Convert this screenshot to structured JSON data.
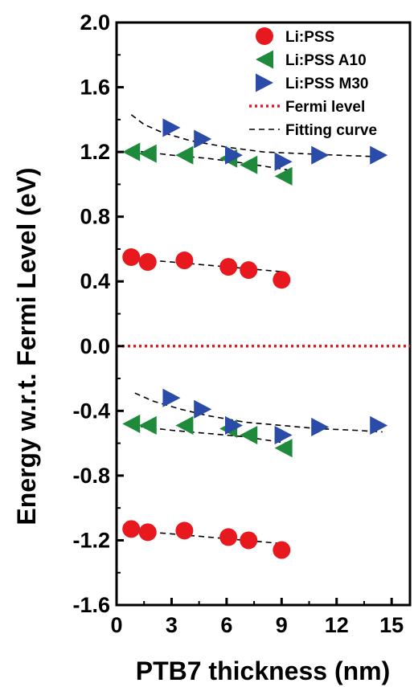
{
  "chart_data": {
    "type": "scatter",
    "title": "",
    "xlabel": "PTB7 thickness (nm)",
    "ylabel": "Energy w.r.t. Fermi Level (eV)",
    "xlim": [
      0,
      16
    ],
    "ylim": [
      -1.6,
      2.0
    ],
    "x_ticks": [
      0,
      3,
      6,
      9,
      12,
      15
    ],
    "x_tick_labels": [
      "0",
      "3",
      "6",
      "9",
      "12",
      "15"
    ],
    "y_ticks": [
      -1.6,
      -1.2,
      -0.8,
      -0.4,
      0.0,
      0.4,
      0.8,
      1.2,
      1.6,
      2.0
    ],
    "y_tick_labels": [
      "-1.6",
      "-1.2",
      "-0.8",
      "-0.4",
      "0.0",
      "0.4",
      "0.8",
      "1.2",
      "1.6",
      "2.0"
    ],
    "grid": false,
    "legend_position": "top-right",
    "series": [
      {
        "name": "Li:PSS",
        "marker": "circle",
        "color": "#e8191e",
        "points": [
          {
            "x": 0.8,
            "y": 0.55
          },
          {
            "x": 1.7,
            "y": 0.52
          },
          {
            "x": 3.7,
            "y": 0.53
          },
          {
            "x": 6.1,
            "y": 0.49
          },
          {
            "x": 7.2,
            "y": 0.47
          },
          {
            "x": 9.0,
            "y": 0.41
          },
          {
            "x": 0.8,
            "y": -1.13
          },
          {
            "x": 1.7,
            "y": -1.15
          },
          {
            "x": 3.7,
            "y": -1.14
          },
          {
            "x": 6.1,
            "y": -1.18
          },
          {
            "x": 7.2,
            "y": -1.2
          },
          {
            "x": 9.0,
            "y": -1.26
          }
        ]
      },
      {
        "name": "Li:PSS A10",
        "marker": "triangle-left",
        "color": "#1f8a3c",
        "points": [
          {
            "x": 0.8,
            "y": 1.2
          },
          {
            "x": 1.7,
            "y": 1.19
          },
          {
            "x": 3.7,
            "y": 1.18
          },
          {
            "x": 6.1,
            "y": 1.16
          },
          {
            "x": 7.2,
            "y": 1.12
          },
          {
            "x": 9.1,
            "y": 1.05
          },
          {
            "x": 0.8,
            "y": -0.48
          },
          {
            "x": 1.7,
            "y": -0.49
          },
          {
            "x": 3.7,
            "y": -0.49
          },
          {
            "x": 6.1,
            "y": -0.51
          },
          {
            "x": 7.2,
            "y": -0.55
          },
          {
            "x": 9.1,
            "y": -0.63
          }
        ]
      },
      {
        "name": "Li:PSS M30",
        "marker": "triangle-right",
        "color": "#2b4ba8",
        "points": [
          {
            "x": 3.0,
            "y": 1.35
          },
          {
            "x": 4.7,
            "y": 1.28
          },
          {
            "x": 6.4,
            "y": 1.18
          },
          {
            "x": 9.1,
            "y": 1.14
          },
          {
            "x": 11.1,
            "y": 1.18
          },
          {
            "x": 14.3,
            "y": 1.18
          },
          {
            "x": 3.0,
            "y": -0.32
          },
          {
            "x": 4.7,
            "y": -0.39
          },
          {
            "x": 6.4,
            "y": -0.49
          },
          {
            "x": 9.1,
            "y": -0.55
          },
          {
            "x": 11.1,
            "y": -0.5
          },
          {
            "x": 14.3,
            "y": -0.49
          }
        ]
      },
      {
        "name": "Fermi level",
        "marker": "dotted-line",
        "color": "#e8191e",
        "points": [
          {
            "x": 0,
            "y": 0.0
          },
          {
            "x": 16,
            "y": 0.0
          }
        ]
      },
      {
        "name": "Fitting curve",
        "marker": "dashed-line",
        "color": "#000000",
        "curves": [
          [
            {
              "x": 0.8,
              "y": 1.43
            },
            {
              "x": 1.5,
              "y": 1.37
            },
            {
              "x": 2.5,
              "y": 1.32
            },
            {
              "x": 4.0,
              "y": 1.27
            },
            {
              "x": 6.0,
              "y": 1.23
            },
            {
              "x": 8.0,
              "y": 1.2
            },
            {
              "x": 10.0,
              "y": 1.19
            },
            {
              "x": 12.0,
              "y": 1.18
            },
            {
              "x": 14.5,
              "y": 1.17
            }
          ],
          [
            {
              "x": 0.8,
              "y": 1.21
            },
            {
              "x": 3.0,
              "y": 1.18
            },
            {
              "x": 5.0,
              "y": 1.16
            },
            {
              "x": 7.0,
              "y": 1.13
            },
            {
              "x": 9.3,
              "y": 1.09
            }
          ],
          [
            {
              "x": 0.8,
              "y": 0.54
            },
            {
              "x": 3.0,
              "y": 0.52
            },
            {
              "x": 5.0,
              "y": 0.5
            },
            {
              "x": 7.0,
              "y": 0.48
            },
            {
              "x": 9.0,
              "y": 0.46
            }
          ],
          [
            {
              "x": 1.0,
              "y": -0.29
            },
            {
              "x": 2.0,
              "y": -0.34
            },
            {
              "x": 3.5,
              "y": -0.39
            },
            {
              "x": 5.0,
              "y": -0.43
            },
            {
              "x": 7.0,
              "y": -0.47
            },
            {
              "x": 9.0,
              "y": -0.49
            },
            {
              "x": 11.0,
              "y": -0.51
            },
            {
              "x": 13.0,
              "y": -0.52
            },
            {
              "x": 14.5,
              "y": -0.53
            }
          ],
          [
            {
              "x": 0.8,
              "y": -0.49
            },
            {
              "x": 3.0,
              "y": -0.52
            },
            {
              "x": 5.0,
              "y": -0.54
            },
            {
              "x": 7.0,
              "y": -0.56
            },
            {
              "x": 9.3,
              "y": -0.6
            }
          ],
          [
            {
              "x": 0.8,
              "y": -1.14
            },
            {
              "x": 3.0,
              "y": -1.16
            },
            {
              "x": 5.0,
              "y": -1.18
            },
            {
              "x": 7.0,
              "y": -1.2
            },
            {
              "x": 9.0,
              "y": -1.22
            }
          ]
        ]
      }
    ]
  }
}
